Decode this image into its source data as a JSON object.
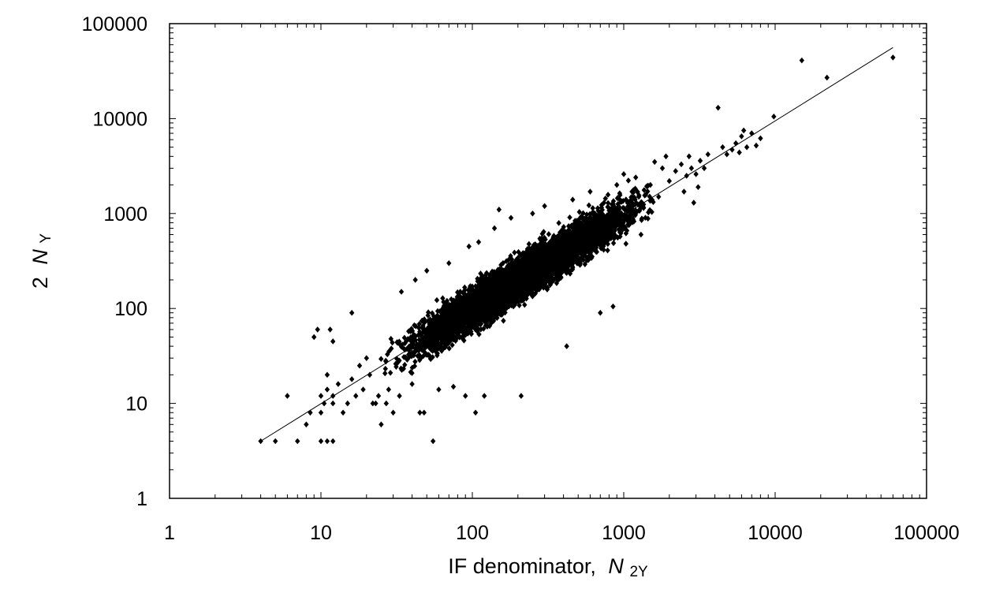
{
  "chart_data": {
    "type": "scatter",
    "xlabel": {
      "main": "IF denominator,",
      "symbol": "N",
      "subscript": "2Y"
    },
    "ylabel": {
      "main": "2",
      "symbol": "N",
      "subscript": "Y"
    },
    "x_scale": "log",
    "y_scale": "log",
    "xlim": [
      1,
      100000
    ],
    "ylim": [
      1,
      100000
    ],
    "x_ticks": [
      "1",
      "10",
      "100",
      "1000",
      "10000",
      "100000"
    ],
    "y_ticks": [
      "1",
      "10",
      "100",
      "1000",
      "10000",
      "100000"
    ],
    "grid": false,
    "legend": "none",
    "marker": "diamond",
    "marker_color": "#000000",
    "trendline": {
      "x": [
        4,
        60000
      ],
      "y": [
        4,
        56000
      ]
    },
    "cloud": {
      "count": 6500,
      "log10_x_range": [
        1.35,
        3.3
      ],
      "note_center": "dense cluster along y = x, scatter about 0.12 decades"
    },
    "points": [
      {
        "x": 4,
        "y": 4
      },
      {
        "x": 5,
        "y": 4
      },
      {
        "x": 6,
        "y": 12
      },
      {
        "x": 7,
        "y": 4
      },
      {
        "x": 8,
        "y": 6
      },
      {
        "x": 8.5,
        "y": 8
      },
      {
        "x": 9,
        "y": 50
      },
      {
        "x": 9.5,
        "y": 60
      },
      {
        "x": 10,
        "y": 4
      },
      {
        "x": 11,
        "y": 4
      },
      {
        "x": 12,
        "y": 4
      },
      {
        "x": 10,
        "y": 8
      },
      {
        "x": 10,
        "y": 12
      },
      {
        "x": 10.5,
        "y": 10
      },
      {
        "x": 11,
        "y": 14
      },
      {
        "x": 11,
        "y": 20
      },
      {
        "x": 12,
        "y": 10
      },
      {
        "x": 12,
        "y": 12
      },
      {
        "x": 13,
        "y": 16
      },
      {
        "x": 11.5,
        "y": 60
      },
      {
        "x": 12,
        "y": 45
      },
      {
        "x": 14,
        "y": 8
      },
      {
        "x": 15,
        "y": 10
      },
      {
        "x": 16,
        "y": 18
      },
      {
        "x": 16,
        "y": 90
      },
      {
        "x": 17,
        "y": 12
      },
      {
        "x": 18,
        "y": 25
      },
      {
        "x": 19,
        "y": 14
      },
      {
        "x": 20,
        "y": 30
      },
      {
        "x": 21,
        "y": 20
      },
      {
        "x": 22,
        "y": 10
      },
      {
        "x": 23,
        "y": 10
      },
      {
        "x": 24,
        "y": 12
      },
      {
        "x": 25,
        "y": 6
      },
      {
        "x": 27,
        "y": 10
      },
      {
        "x": 28,
        "y": 14
      },
      {
        "x": 30,
        "y": 8
      },
      {
        "x": 33,
        "y": 12
      },
      {
        "x": 34,
        "y": 150
      },
      {
        "x": 40,
        "y": 16
      },
      {
        "x": 42,
        "y": 200
      },
      {
        "x": 45,
        "y": 8
      },
      {
        "x": 48,
        "y": 8
      },
      {
        "x": 50,
        "y": 250
      },
      {
        "x": 55,
        "y": 4
      },
      {
        "x": 60,
        "y": 14
      },
      {
        "x": 70,
        "y": 300
      },
      {
        "x": 75,
        "y": 15
      },
      {
        "x": 90,
        "y": 12
      },
      {
        "x": 95,
        "y": 450
      },
      {
        "x": 105,
        "y": 8
      },
      {
        "x": 110,
        "y": 500
      },
      {
        "x": 120,
        "y": 12
      },
      {
        "x": 140,
        "y": 700
      },
      {
        "x": 150,
        "y": 1100
      },
      {
        "x": 180,
        "y": 900
      },
      {
        "x": 210,
        "y": 12
      },
      {
        "x": 250,
        "y": 1000
      },
      {
        "x": 300,
        "y": 1200
      },
      {
        "x": 420,
        "y": 40
      },
      {
        "x": 460,
        "y": 1400
      },
      {
        "x": 600,
        "y": 1700
      },
      {
        "x": 700,
        "y": 90
      },
      {
        "x": 850,
        "y": 105
      },
      {
        "x": 900,
        "y": 2000
      },
      {
        "x": 1000,
        "y": 2600
      },
      {
        "x": 1200,
        "y": 2400
      },
      {
        "x": 1300,
        "y": 600
      },
      {
        "x": 1500,
        "y": 2000
      },
      {
        "x": 1600,
        "y": 3500
      },
      {
        "x": 1700,
        "y": 1500
      },
      {
        "x": 1800,
        "y": 3000
      },
      {
        "x": 1900,
        "y": 4000
      },
      {
        "x": 2000,
        "y": 2200
      },
      {
        "x": 2200,
        "y": 2800
      },
      {
        "x": 2400,
        "y": 3300
      },
      {
        "x": 2500,
        "y": 1700
      },
      {
        "x": 2600,
        "y": 2500
      },
      {
        "x": 2700,
        "y": 4000
      },
      {
        "x": 2800,
        "y": 3000
      },
      {
        "x": 2900,
        "y": 1300
      },
      {
        "x": 3000,
        "y": 2600
      },
      {
        "x": 3100,
        "y": 1900
      },
      {
        "x": 3200,
        "y": 3600
      },
      {
        "x": 3400,
        "y": 3000
      },
      {
        "x": 3600,
        "y": 4200
      },
      {
        "x": 4200,
        "y": 13000
      },
      {
        "x": 4500,
        "y": 5000
      },
      {
        "x": 4800,
        "y": 4200
      },
      {
        "x": 5200,
        "y": 4700
      },
      {
        "x": 5500,
        "y": 5500
      },
      {
        "x": 5800,
        "y": 4400
      },
      {
        "x": 6000,
        "y": 6500
      },
      {
        "x": 6200,
        "y": 7500
      },
      {
        "x": 6500,
        "y": 5000
      },
      {
        "x": 7000,
        "y": 7000
      },
      {
        "x": 7500,
        "y": 5200
      },
      {
        "x": 8000,
        "y": 6200
      },
      {
        "x": 9800,
        "y": 10500
      },
      {
        "x": 15000,
        "y": 41000
      },
      {
        "x": 22000,
        "y": 27000
      },
      {
        "x": 60000,
        "y": 44000
      }
    ]
  }
}
